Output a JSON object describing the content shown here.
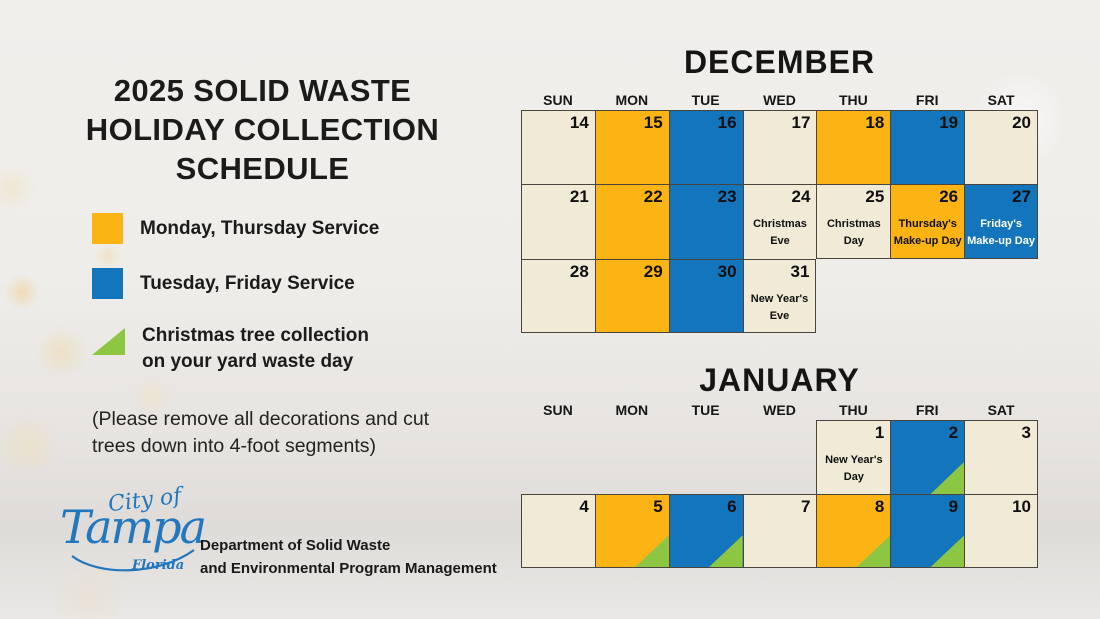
{
  "poster": {
    "title": "2025 SOLID WASTE\nHOLIDAY COLLECTION\nSCHEDULE"
  },
  "legend": {
    "items": [
      {
        "swatch": "square",
        "color": "#FCB415",
        "label": "Monday, Thursday Service"
      },
      {
        "swatch": "square",
        "color": "#1375BC",
        "label": "Tuesday, Friday Service"
      },
      {
        "swatch": "triangle",
        "color": "#8CC643",
        "label": "Christmas tree collection\non your yard waste day"
      }
    ],
    "note": "(Please remove all decorations and cut\ntrees down into 4-foot segments)"
  },
  "footer": {
    "logo_city_of": "City of",
    "logo_tampa": "Tampa",
    "logo_florida": "Florida",
    "department": "Department of Solid Waste\nand Environmental Program Management"
  },
  "colors": {
    "yellow": "#FCB415",
    "blue": "#1375BC",
    "cream": "#F0EAD6",
    "green": "#8CC643",
    "cal-border": "#4A453C",
    "text": "#1D1D1B",
    "logo-blue": "#2377BE",
    "white-label": "#FFFFFF"
  },
  "calendars": [
    {
      "id": "december",
      "title": "DECEMBER",
      "day_headers": [
        "SUN",
        "MON",
        "TUE",
        "WED",
        "THU",
        "FRI",
        "SAT"
      ],
      "weeks": [
        [
          {
            "day": "14",
            "type": "cream"
          },
          {
            "day": "15",
            "type": "yellow"
          },
          {
            "day": "16",
            "type": "blue"
          },
          {
            "day": "17",
            "type": "cream"
          },
          {
            "day": "18",
            "type": "yellow"
          },
          {
            "day": "19",
            "type": "blue"
          },
          {
            "day": "20",
            "type": "cream"
          }
        ],
        [
          {
            "day": "21",
            "type": "cream"
          },
          {
            "day": "22",
            "type": "yellow"
          },
          {
            "day": "23",
            "type": "blue"
          },
          {
            "day": "24",
            "type": "cream",
            "label": "Christmas Eve"
          },
          {
            "day": "25",
            "type": "cream",
            "label": "Christmas Day"
          },
          {
            "day": "26",
            "type": "yellow",
            "label": "Thursday's Make-up Day"
          },
          {
            "day": "27",
            "type": "blue",
            "label": "Friday's Make-up Day",
            "label_white": true
          }
        ],
        [
          {
            "day": "28",
            "type": "cream"
          },
          {
            "day": "29",
            "type": "yellow"
          },
          {
            "day": "30",
            "type": "blue"
          },
          {
            "day": "31",
            "type": "cream",
            "label": "New Year's Eve"
          },
          null,
          null,
          null
        ]
      ]
    },
    {
      "id": "january",
      "title": "JANUARY",
      "day_headers": [
        "SUN",
        "MON",
        "TUE",
        "WED",
        "THU",
        "FRI",
        "SAT"
      ],
      "weeks": [
        [
          null,
          null,
          null,
          null,
          {
            "day": "1",
            "type": "cream",
            "label": "New Year's Day"
          },
          {
            "day": "2",
            "type": "blue",
            "tree": true
          },
          {
            "day": "3",
            "type": "cream"
          }
        ],
        [
          {
            "day": "4",
            "type": "cream"
          },
          {
            "day": "5",
            "type": "yellow",
            "tree": true
          },
          {
            "day": "6",
            "type": "blue",
            "tree": true
          },
          {
            "day": "7",
            "type": "cream"
          },
          {
            "day": "8",
            "type": "yellow",
            "tree": true
          },
          {
            "day": "9",
            "type": "blue",
            "tree": true
          },
          {
            "day": "10",
            "type": "cream"
          }
        ]
      ]
    }
  ]
}
